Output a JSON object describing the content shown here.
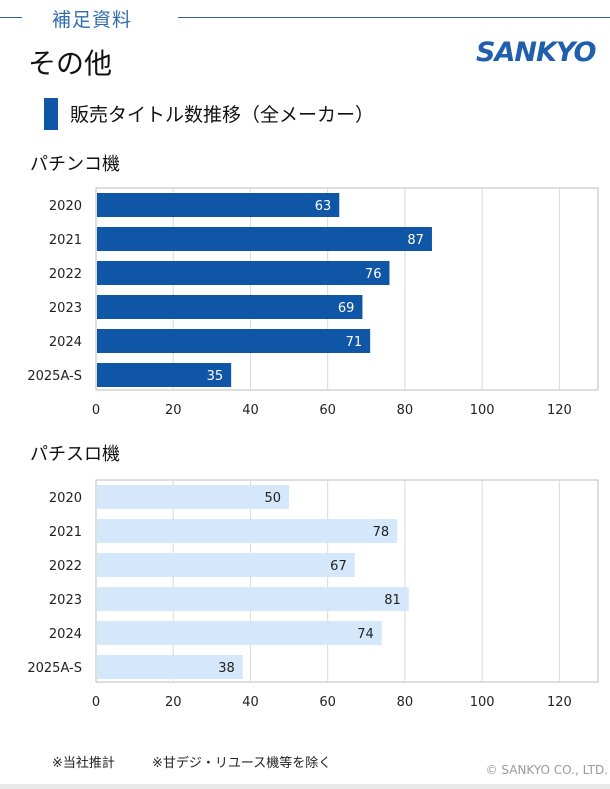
{
  "header": {
    "section_label": "補足資料",
    "page_title": "その他",
    "logo_text": "SANKYO"
  },
  "section": {
    "title": "販売タイトル数推移（全メーカー）"
  },
  "colors": {
    "pachinko_bar": "#0f56a6",
    "pachislot_bar": "#d5e8fb",
    "accent": "#2f6db0"
  },
  "chart_data": [
    {
      "type": "bar",
      "orientation": "horizontal",
      "title": "パチンコ機",
      "categories": [
        "2020",
        "2021",
        "2022",
        "2023",
        "2024",
        "2025A-S"
      ],
      "values": [
        63,
        87,
        76,
        69,
        71,
        35
      ],
      "xlim": [
        0,
        130
      ],
      "xticks": [
        0,
        20,
        40,
        60,
        80,
        100,
        120
      ],
      "xlabel": "",
      "ylabel": ""
    },
    {
      "type": "bar",
      "orientation": "horizontal",
      "title": "パチスロ機",
      "categories": [
        "2020",
        "2021",
        "2022",
        "2023",
        "2024",
        "2025A-S"
      ],
      "values": [
        50,
        78,
        67,
        81,
        74,
        38
      ],
      "xlim": [
        0,
        130
      ],
      "xticks": [
        0,
        20,
        40,
        60,
        80,
        100,
        120
      ],
      "xlabel": "",
      "ylabel": ""
    }
  ],
  "footer": {
    "note1": "※当社推計",
    "note2": "※甘デジ・リユース機等を除く",
    "copyright": "© SANKYO CO., LTD."
  }
}
